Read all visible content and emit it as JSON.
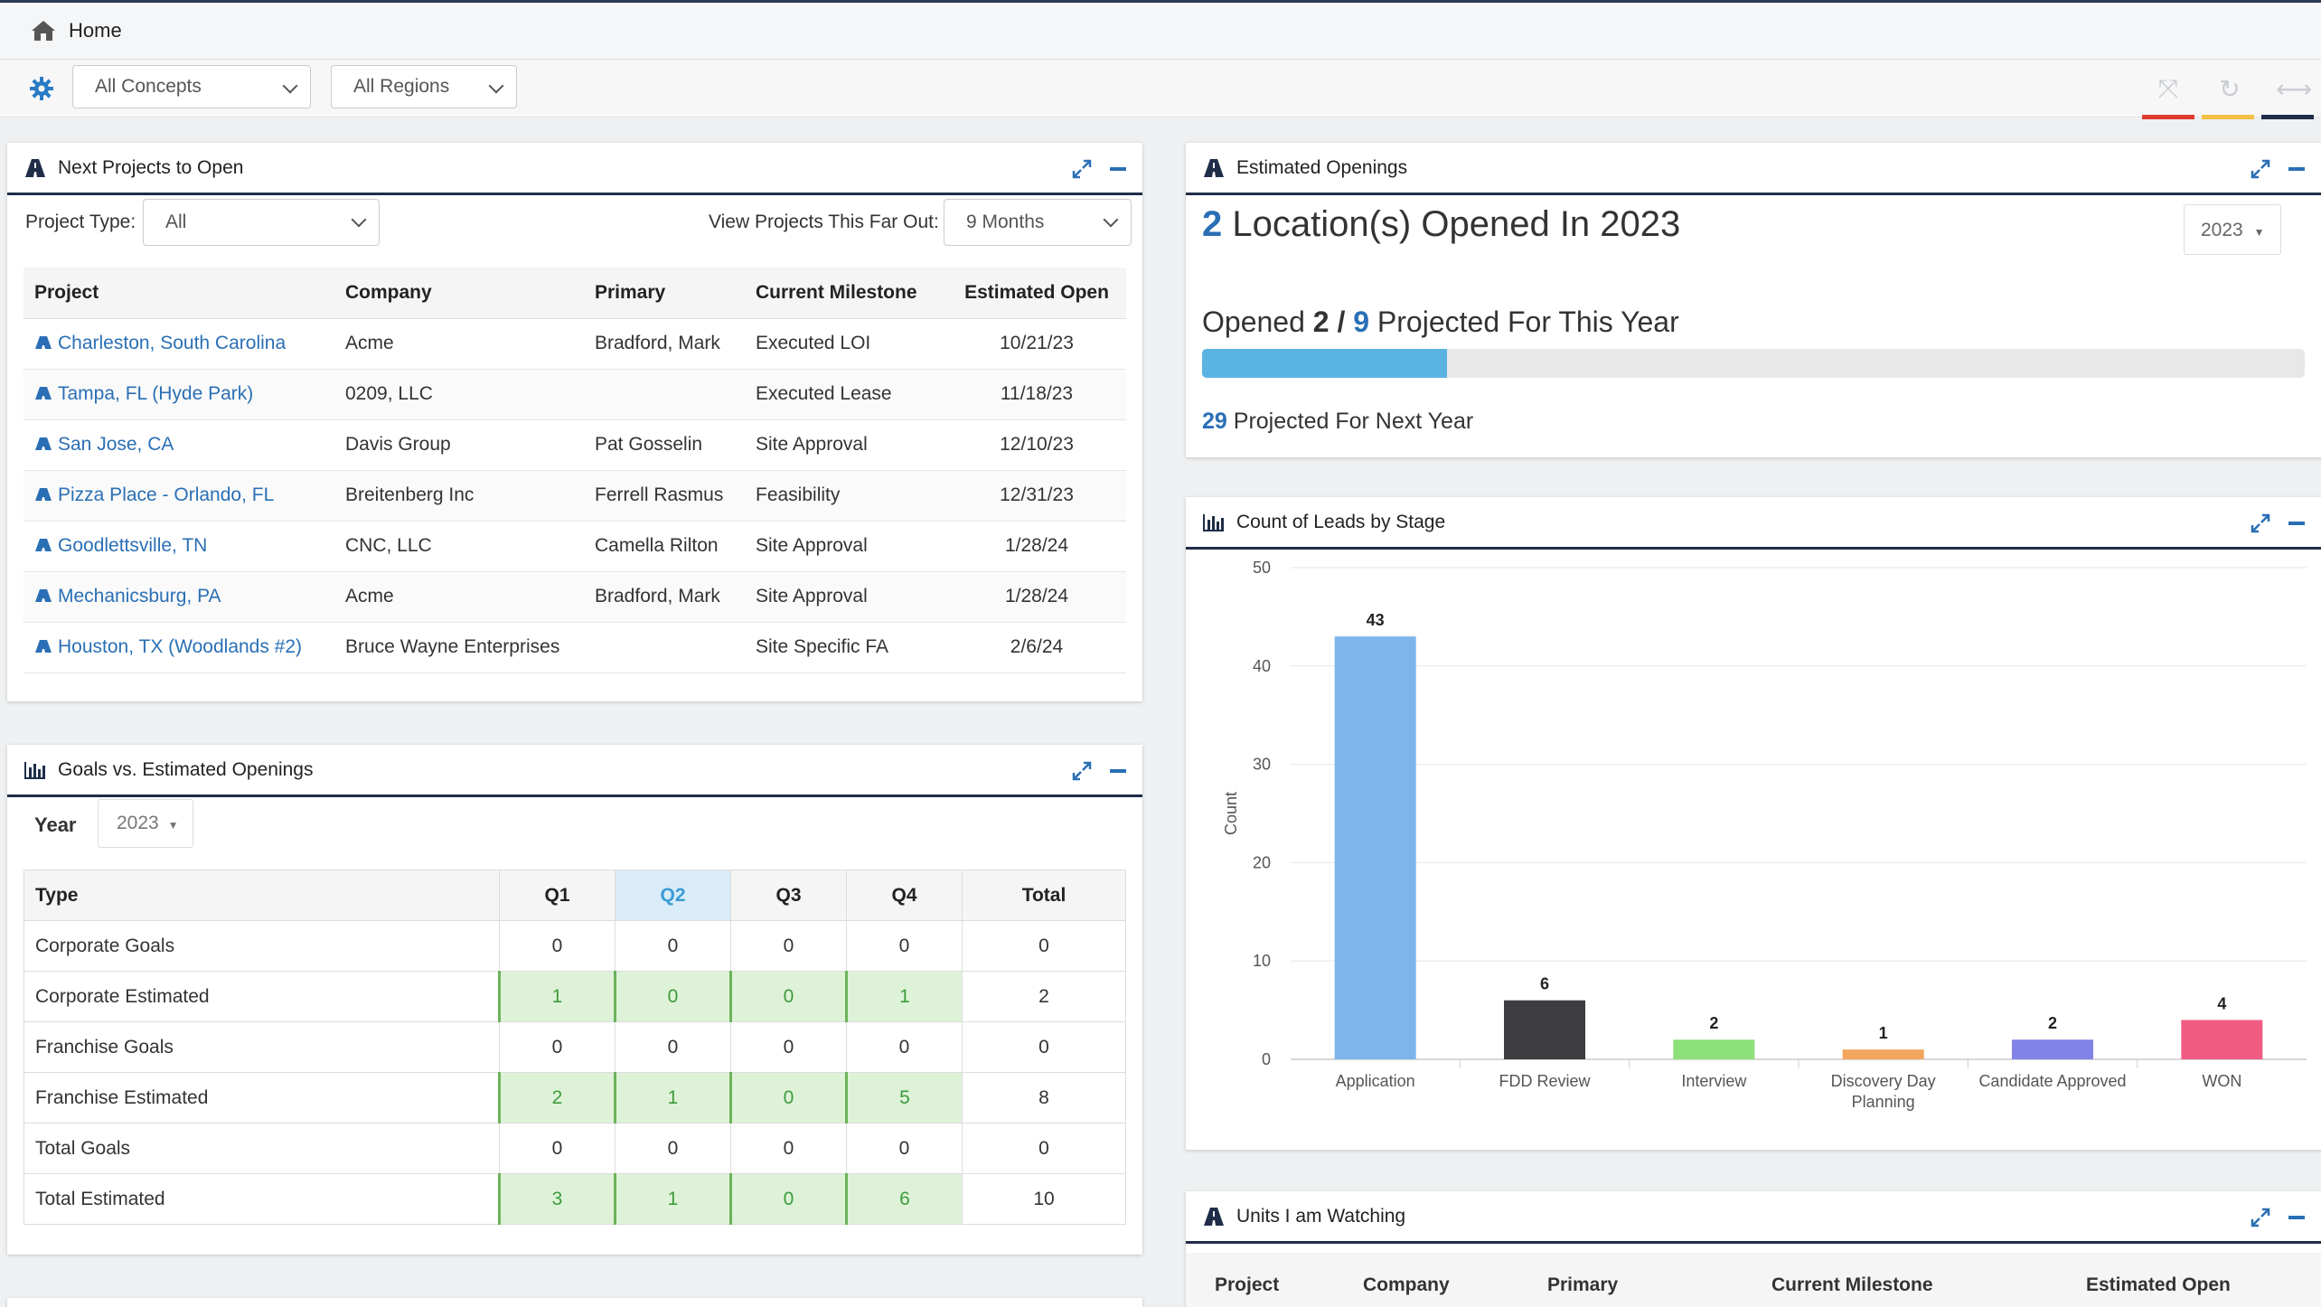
{
  "breadcrumb": {
    "home_label": "Home"
  },
  "filters": {
    "concepts": "All Concepts",
    "regions": "All Regions"
  },
  "toolbar": {
    "colors": [
      "#e03c31",
      "#f3c043",
      "#1f2d48"
    ]
  },
  "next_projects": {
    "title": "Next Projects to Open",
    "project_type_label": "Project Type:",
    "project_type_value": "All",
    "far_out_label": "View Projects This Far Out:",
    "far_out_value": "9 Months",
    "columns": [
      "Project",
      "Company",
      "Primary",
      "Current Milestone",
      "Estimated Open"
    ],
    "rows": [
      {
        "project": "Charleston, South Carolina",
        "company": "Acme",
        "primary": "Bradford, Mark",
        "milestone": "Executed LOI",
        "open": "10/21/23"
      },
      {
        "project": "Tampa, FL (Hyde Park)",
        "company": "0209, LLC",
        "primary": "",
        "milestone": "Executed Lease",
        "open": "11/18/23"
      },
      {
        "project": "San Jose, CA",
        "company": "Davis Group",
        "primary": "Pat Gosselin",
        "milestone": "Site Approval",
        "open": "12/10/23"
      },
      {
        "project": "Pizza Place - Orlando, FL",
        "company": "Breitenberg Inc",
        "primary": "Ferrell Rasmus",
        "milestone": "Feasibility",
        "open": "12/31/23"
      },
      {
        "project": "Goodlettsville, TN",
        "company": "CNC, LLC",
        "primary": "Camella Rilton",
        "milestone": "Site Approval",
        "open": "1/28/24"
      },
      {
        "project": "Mechanicsburg, PA",
        "company": "Acme",
        "primary": "Bradford, Mark",
        "milestone": "Site Approval",
        "open": "1/28/24"
      },
      {
        "project": "Houston, TX (Woodlands #2)",
        "company": "Bruce Wayne Enterprises",
        "primary": "",
        "milestone": "Site Specific FA",
        "open": "2/6/24"
      }
    ]
  },
  "goals": {
    "title": "Goals vs. Estimated Openings",
    "year_label": "Year",
    "year_value": "2023",
    "columns": [
      "Type",
      "Q1",
      "Q2",
      "Q3",
      "Q4",
      "Total"
    ],
    "rows": [
      {
        "type": "Corporate Goals",
        "q": [
          "0",
          "0",
          "0",
          "0"
        ],
        "total": "0",
        "hl": false
      },
      {
        "type": "Corporate Estimated",
        "q": [
          "1",
          "0",
          "0",
          "1"
        ],
        "total": "2",
        "hl": true
      },
      {
        "type": "Franchise Goals",
        "q": [
          "0",
          "0",
          "0",
          "0"
        ],
        "total": "0",
        "hl": false
      },
      {
        "type": "Franchise Estimated",
        "q": [
          "2",
          "1",
          "0",
          "5"
        ],
        "total": "8",
        "hl": true
      },
      {
        "type": "Total Goals",
        "q": [
          "0",
          "0",
          "0",
          "0"
        ],
        "total": "0",
        "hl": false
      },
      {
        "type": "Total Estimated",
        "q": [
          "3",
          "1",
          "0",
          "6"
        ],
        "total": "10",
        "hl": true
      }
    ]
  },
  "estimated_openings": {
    "title": "Estimated Openings",
    "opened_count": "2",
    "opened_text": "Location(s) Opened In 2023",
    "year_value": "2023",
    "opened_label": "Opened",
    "opened_num": "2 /",
    "projected_num": "9",
    "projected_text": "Projected For This Year",
    "progress": 0.222,
    "next_year_num": "29",
    "next_year_text": "Projected For Next Year"
  },
  "leads_chart": {
    "title": "Count of Leads by Stage"
  },
  "chart_data": {
    "type": "bar",
    "categories": [
      "Application",
      "FDD Review",
      "Interview",
      "Discovery Day Planning",
      "Candidate Approved",
      "WON"
    ],
    "values": [
      43,
      6,
      2,
      1,
      2,
      4
    ],
    "colors": [
      "#7eb5ea",
      "#3d3d40",
      "#8de07a",
      "#f2a65e",
      "#8283e6",
      "#f25c82"
    ],
    "ylabel": "Count",
    "ylim": [
      0,
      50
    ],
    "yticks": [
      0,
      10,
      20,
      30,
      40,
      50
    ],
    "category_lines": [
      [
        "Application"
      ],
      [
        "FDD Review"
      ],
      [
        "Interview"
      ],
      [
        "Discovery Day",
        "Planning"
      ],
      [
        "Candidate Approved"
      ],
      [
        "WON"
      ]
    ]
  },
  "units_watching": {
    "title": "Units I am Watching",
    "columns": [
      "Project",
      "Company",
      "Primary",
      "Current Milestone",
      "Estimated Open"
    ]
  }
}
